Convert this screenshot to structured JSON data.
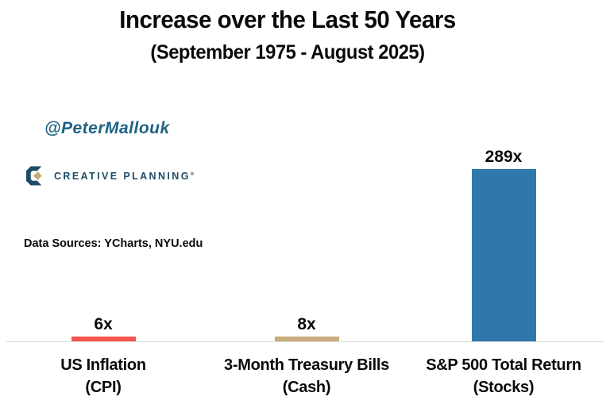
{
  "header": {
    "title": "Increase over the Last 50 Years",
    "subtitle": "(September 1975 - August 2025)"
  },
  "annotations": {
    "handle": "@PeterMallouk",
    "logo_text": "CREATIVE PLANNING",
    "logo_trademark": "®",
    "data_sources": "Data Sources: YCharts, NYU.edu"
  },
  "chart_data": {
    "type": "bar",
    "title": "Increase over the Last 50 Years",
    "subtitle": "(September 1975 - August 2025)",
    "categories": [
      {
        "line1": "US Inflation",
        "line2": "(CPI)"
      },
      {
        "line1": "3-Month Treasury Bills",
        "line2": "(Cash)"
      },
      {
        "line1": "S&P 500 Total Return",
        "line2": "(Stocks)"
      }
    ],
    "values": [
      6,
      8,
      289
    ],
    "value_labels": [
      "6x",
      "8x",
      "289x"
    ],
    "bar_colors": [
      "#f4564b",
      "#c9ac7b",
      "#2e78ac"
    ],
    "ylim": [
      0,
      289
    ],
    "grid": false,
    "legend": false,
    "axis_line_color": "#d9d9d9"
  },
  "theme": {
    "accent_teal": "#1e6284",
    "logo_navy": "#1d4c67",
    "logo_gold": "#c5a873",
    "text_color": "#0a0a0a"
  }
}
